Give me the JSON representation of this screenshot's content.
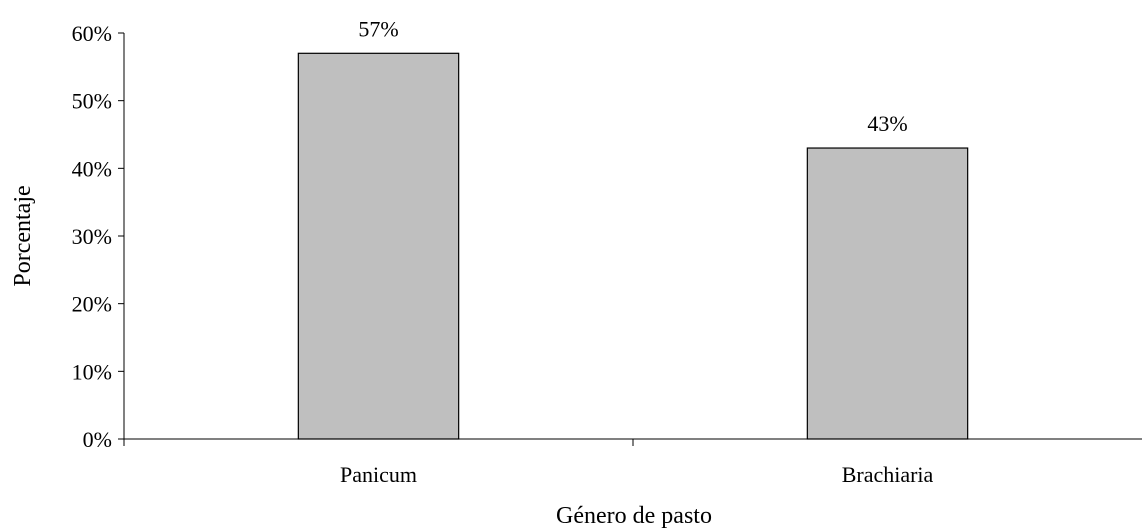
{
  "chart_data": {
    "type": "bar",
    "categories": [
      "Panicum",
      "Brachiaria"
    ],
    "values": [
      57,
      43
    ],
    "data_labels": [
      "57%",
      "43%"
    ],
    "title": "",
    "xlabel": "Género de pasto",
    "ylabel": "Porcentaje",
    "ylim": [
      0,
      60
    ],
    "yticks": [
      0,
      10,
      20,
      30,
      40,
      50,
      60
    ],
    "ytick_labels": [
      "0%",
      "10%",
      "20%",
      "30%",
      "40%",
      "50%",
      "60%"
    ],
    "grid": false,
    "legend": "none",
    "bar_color": "#bfbfbf",
    "bar_edge_color": "#000000"
  }
}
